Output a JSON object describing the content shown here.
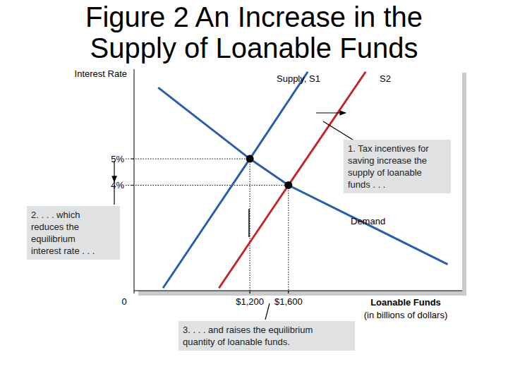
{
  "chart_data": {
    "type": "line",
    "title": "Figure 2 An Increase in the Supply of Loanable Funds",
    "y_label": "Interest Rate",
    "x_label": "Loanable Funds (in billions of dollars)",
    "xlim": [
      0,
      3400
    ],
    "ylim": [
      0,
      8.4
    ],
    "xticks": [
      0,
      {
        "value": 1200,
        "label": "$1,200"
      },
      {
        "value": 1600,
        "label": "$1,600"
      }
    ],
    "yticks": [
      {
        "value": 4,
        "label": "4%"
      },
      {
        "value": 5,
        "label": "5%"
      }
    ],
    "grid": false,
    "series": [
      {
        "name": "Supply, S1",
        "type": "line",
        "color": "#2a5ea8",
        "x": [
          300,
          1200,
          1800
        ],
        "values": [
          0.1,
          5,
          8.3
        ]
      },
      {
        "name": "S2",
        "type": "line",
        "color": "#c4262e",
        "x": [
          880,
          1600,
          2400
        ],
        "values": [
          0.1,
          4,
          8.3
        ]
      },
      {
        "name": "Demand",
        "type": "line",
        "color": "#2a5ea8",
        "x": [
          250,
          1200,
          1600,
          3250
        ],
        "values": [
          7.7,
          5,
          4,
          1
        ]
      },
      {
        "type": "scatter",
        "marker": "circle",
        "color": "#000000",
        "x": [
          1200,
          1600
        ],
        "values": [
          5,
          4
        ]
      }
    ],
    "annotations": [
      [
        "1. Tax incentives for",
        "saving increase the",
        "supply of loanable",
        "funds . . ."
      ],
      [
        "2. . . . which",
        "reduces the",
        "equilibrium",
        "interest rate . . ."
      ],
      [
        "3. . . . and raises the equilibrium",
        "quantity of loanable funds."
      ]
    ]
  }
}
